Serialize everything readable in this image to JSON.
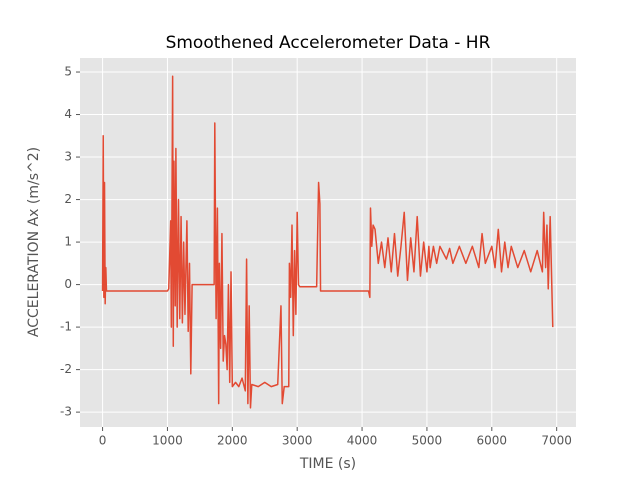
{
  "chart_data": {
    "type": "line",
    "title": "Smoothened Accelerometer Data - HR",
    "x_label": "TIME (s)",
    "y_label": "ACCELERATION Ax (m/s^2)",
    "x": [
      0,
      10,
      20,
      30,
      40,
      50,
      60,
      1000,
      1020,
      1050,
      1060,
      1080,
      1090,
      1100,
      1120,
      1130,
      1150,
      1170,
      1190,
      1210,
      1230,
      1250,
      1270,
      1300,
      1320,
      1340,
      1360,
      1380,
      1400,
      1720,
      1730,
      1750,
      1770,
      1790,
      1800,
      1820,
      1840,
      1860,
      1880,
      1900,
      1920,
      1940,
      1960,
      1980,
      2000,
      2050,
      2100,
      2150,
      2200,
      2220,
      2240,
      2260,
      2280,
      2300,
      2400,
      2500,
      2600,
      2700,
      2750,
      2770,
      2800,
      2870,
      2880,
      2900,
      2920,
      2940,
      2960,
      2980,
      3000,
      3020,
      3040,
      3100,
      3300,
      3330,
      3350,
      3360,
      3600,
      4100,
      4120,
      4130,
      4150,
      4170,
      4200,
      4250,
      4300,
      4350,
      4400,
      4450,
      4500,
      4550,
      4600,
      4650,
      4700,
      4750,
      4800,
      4850,
      4900,
      4950,
      5000,
      5030,
      5050,
      5100,
      5150,
      5200,
      5300,
      5350,
      5400,
      5500,
      5600,
      5700,
      5800,
      5850,
      5900,
      6000,
      6050,
      6100,
      6150,
      6200,
      6250,
      6300,
      6400,
      6500,
      6600,
      6700,
      6780,
      6800,
      6830,
      6850,
      6870,
      6900,
      6920,
      6940
    ],
    "series": [
      {
        "name": "Ax",
        "color": "#e24a33",
        "values": [
          -0.15,
          3.5,
          -0.3,
          2.4,
          -0.45,
          0.4,
          -0.15,
          -0.15,
          -0.1,
          1.5,
          -1.0,
          4.9,
          -1.45,
          2.9,
          -0.5,
          3.2,
          -1.0,
          2.0,
          -0.8,
          1.6,
          -0.9,
          1.0,
          -0.7,
          1.5,
          -1.1,
          0.5,
          -2.1,
          0.0,
          0.0,
          0.0,
          3.8,
          -0.8,
          1.8,
          -2.8,
          0.5,
          -1.5,
          1.2,
          -1.8,
          -1.2,
          -1.4,
          -2.0,
          0.0,
          -2.3,
          0.3,
          -2.4,
          -2.3,
          -2.4,
          -2.2,
          -2.5,
          0.6,
          -2.8,
          -0.5,
          -2.9,
          -2.35,
          -2.4,
          -2.3,
          -2.4,
          -2.35,
          -0.5,
          -2.8,
          -2.4,
          -2.4,
          0.5,
          -0.3,
          1.4,
          -1.2,
          0.8,
          -0.7,
          1.7,
          0.0,
          -0.05,
          -0.05,
          -0.05,
          2.4,
          1.9,
          -0.15,
          -0.15,
          -0.15,
          -0.3,
          1.8,
          0.9,
          1.4,
          1.3,
          0.5,
          1.0,
          0.4,
          1.1,
          0.3,
          1.2,
          0.2,
          0.9,
          1.7,
          0.1,
          1.1,
          0.3,
          1.6,
          0.2,
          1.0,
          0.3,
          0.9,
          0.4,
          0.9,
          0.5,
          0.9,
          0.6,
          0.85,
          0.5,
          0.9,
          0.5,
          0.9,
          0.4,
          1.2,
          0.5,
          0.9,
          0.4,
          1.3,
          0.3,
          1.0,
          0.4,
          0.9,
          0.4,
          0.8,
          0.3,
          0.8,
          0.3,
          1.7,
          0.4,
          1.4,
          -0.1,
          1.6,
          0.3,
          -1.0
        ]
      }
    ],
    "xlim": [
      -348,
      7298
    ],
    "ylim": [
      -3.35,
      5.33
    ],
    "xticks": [
      0,
      1000,
      2000,
      3000,
      4000,
      5000,
      6000,
      7000
    ],
    "yticks": [
      -3,
      -2,
      -1,
      0,
      1,
      2,
      3,
      4,
      5
    ],
    "grid": true
  }
}
